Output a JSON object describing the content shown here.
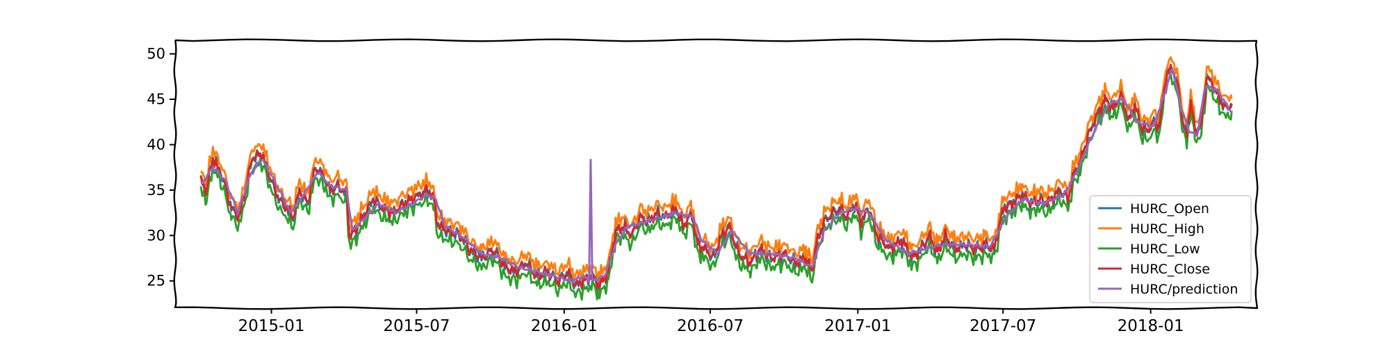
{
  "chart_data": {
    "type": "line",
    "title": "",
    "xlabel": "",
    "ylabel": "",
    "x_ticks": [
      "2015-01",
      "2015-07",
      "2016-01",
      "2016-07",
      "2017-01",
      "2017-07",
      "2018-01"
    ],
    "y_ticks": [
      25,
      30,
      35,
      40,
      45,
      50
    ],
    "x_range": [
      "2014-09-03",
      "2018-05-13"
    ],
    "ylim": [
      22,
      51.5
    ],
    "grid": false,
    "legend_position": "lower-right",
    "style": "xkcd-sketch",
    "series": [
      {
        "name": "HURC_Open",
        "color": "#1f77b4"
      },
      {
        "name": "HURC_High",
        "color": "#ff7f0e"
      },
      {
        "name": "HURC_Low",
        "color": "#2ca02c"
      },
      {
        "name": "HURC_Close",
        "color": "#d62728"
      },
      {
        "name": "HURC/prediction",
        "color": "#9467bd"
      }
    ],
    "close_points": [
      [
        "2014-10-05",
        36.0
      ],
      [
        "2014-10-12",
        35.0
      ],
      [
        "2014-10-20",
        38.5
      ],
      [
        "2014-11-01",
        36.5
      ],
      [
        "2014-11-12",
        33.0
      ],
      [
        "2014-11-22",
        32.0
      ],
      [
        "2014-12-02",
        36.0
      ],
      [
        "2014-12-08",
        38.5
      ],
      [
        "2014-12-20",
        39.0
      ],
      [
        "2015-01-01",
        36.0
      ],
      [
        "2015-01-10",
        34.0
      ],
      [
        "2015-01-20",
        33.0
      ],
      [
        "2015-01-28",
        32.0
      ],
      [
        "2015-02-05",
        35.0
      ],
      [
        "2015-02-15",
        33.5
      ],
      [
        "2015-02-25",
        37.5
      ],
      [
        "2015-03-08",
        36.5
      ],
      [
        "2015-03-15",
        35.0
      ],
      [
        "2015-03-25",
        35.5
      ],
      [
        "2015-04-05",
        34.5
      ],
      [
        "2015-04-08",
        30.0
      ],
      [
        "2015-04-15",
        30.5
      ],
      [
        "2015-04-25",
        32.0
      ],
      [
        "2015-05-08",
        34.0
      ],
      [
        "2015-05-20",
        33.0
      ],
      [
        "2015-06-01",
        32.5
      ],
      [
        "2015-06-15",
        33.5
      ],
      [
        "2015-06-25",
        34.0
      ],
      [
        "2015-07-05",
        34.5
      ],
      [
        "2015-07-15",
        35.0
      ],
      [
        "2015-07-22",
        34.0
      ],
      [
        "2015-07-28",
        31.0
      ],
      [
        "2015-08-10",
        30.5
      ],
      [
        "2015-08-25",
        30.0
      ],
      [
        "2015-09-05",
        28.5
      ],
      [
        "2015-09-20",
        27.5
      ],
      [
        "2015-10-05",
        28.5
      ],
      [
        "2015-10-20",
        26.5
      ],
      [
        "2015-11-01",
        26.0
      ],
      [
        "2015-11-15",
        27.0
      ],
      [
        "2015-11-28",
        25.5
      ],
      [
        "2015-12-10",
        26.0
      ],
      [
        "2015-12-25",
        25.0
      ],
      [
        "2016-01-05",
        26.0
      ],
      [
        "2016-01-15",
        24.5
      ],
      [
        "2016-01-25",
        25.0
      ],
      [
        "2016-02-05",
        25.5
      ],
      [
        "2016-02-14",
        24.5
      ],
      [
        "2016-02-25",
        26.0
      ],
      [
        "2016-03-05",
        30.5
      ],
      [
        "2016-03-15",
        31.0
      ],
      [
        "2016-03-25",
        30.0
      ],
      [
        "2016-04-05",
        32.0
      ],
      [
        "2016-04-15",
        31.5
      ],
      [
        "2016-04-25",
        32.5
      ],
      [
        "2016-05-05",
        32.0
      ],
      [
        "2016-05-20",
        33.0
      ],
      [
        "2016-05-28",
        31.0
      ],
      [
        "2016-06-08",
        32.5
      ],
      [
        "2016-06-15",
        29.0
      ],
      [
        "2016-06-25",
        28.5
      ],
      [
        "2016-07-05",
        27.5
      ],
      [
        "2016-07-15",
        30.0
      ],
      [
        "2016-07-25",
        31.0
      ],
      [
        "2016-08-05",
        28.0
      ],
      [
        "2016-08-20",
        27.0
      ],
      [
        "2016-09-01",
        28.5
      ],
      [
        "2016-09-15",
        27.5
      ],
      [
        "2016-10-01",
        28.0
      ],
      [
        "2016-10-15",
        27.0
      ],
      [
        "2016-10-28",
        27.5
      ],
      [
        "2016-11-05",
        26.0
      ],
      [
        "2016-11-10",
        29.0
      ],
      [
        "2016-11-20",
        31.5
      ],
      [
        "2016-12-01",
        32.5
      ],
      [
        "2016-12-10",
        33.0
      ],
      [
        "2016-12-18",
        32.0
      ],
      [
        "2016-12-28",
        33.5
      ],
      [
        "2017-01-05",
        31.5
      ],
      [
        "2017-01-15",
        33.0
      ],
      [
        "2017-01-25",
        30.0
      ],
      [
        "2017-02-10",
        28.5
      ],
      [
        "2017-02-25",
        29.5
      ],
      [
        "2017-03-10",
        27.5
      ],
      [
        "2017-03-20",
        28.5
      ],
      [
        "2017-04-01",
        30.0
      ],
      [
        "2017-04-10",
        28.0
      ],
      [
        "2017-04-20",
        30.0
      ],
      [
        "2017-05-01",
        28.5
      ],
      [
        "2017-05-15",
        29.0
      ],
      [
        "2017-05-28",
        28.5
      ],
      [
        "2017-06-10",
        29.0
      ],
      [
        "2017-06-20",
        28.5
      ],
      [
        "2017-07-01",
        33.0
      ],
      [
        "2017-07-12",
        33.5
      ],
      [
        "2017-07-25",
        34.5
      ],
      [
        "2017-08-05",
        33.5
      ],
      [
        "2017-08-15",
        34.0
      ],
      [
        "2017-08-25",
        33.5
      ],
      [
        "2017-09-10",
        35.0
      ],
      [
        "2017-09-20",
        34.0
      ],
      [
        "2017-09-28",
        37.0
      ],
      [
        "2017-10-05",
        38.0
      ],
      [
        "2017-10-15",
        41.0
      ],
      [
        "2017-10-25",
        43.0
      ],
      [
        "2017-11-05",
        45.0
      ],
      [
        "2017-11-15",
        44.0
      ],
      [
        "2017-11-25",
        45.5
      ],
      [
        "2017-12-05",
        42.5
      ],
      [
        "2017-12-12",
        44.5
      ],
      [
        "2017-12-20",
        42.0
      ],
      [
        "2017-12-28",
        41.5
      ],
      [
        "2018-01-05",
        42.5
      ],
      [
        "2018-01-12",
        42.0
      ],
      [
        "2018-01-20",
        47.5
      ],
      [
        "2018-01-28",
        48.5
      ],
      [
        "2018-02-05",
        46.0
      ],
      [
        "2018-02-10",
        42.5
      ],
      [
        "2018-02-15",
        41.0
      ],
      [
        "2018-02-20",
        45.0
      ],
      [
        "2018-02-25",
        41.5
      ],
      [
        "2018-03-05",
        42.0
      ],
      [
        "2018-03-12",
        47.5
      ],
      [
        "2018-03-20",
        46.5
      ],
      [
        "2018-03-28",
        45.0
      ],
      [
        "2018-04-05",
        44.0
      ],
      [
        "2018-04-12",
        44.5
      ]
    ],
    "prediction_points": [
      [
        "2014-10-05",
        35.5
      ],
      [
        "2014-10-20",
        37.5
      ],
      [
        "2014-11-05",
        36.0
      ],
      [
        "2014-11-20",
        32.5
      ],
      [
        "2014-12-05",
        36.5
      ],
      [
        "2014-12-20",
        38.5
      ],
      [
        "2015-01-05",
        36.0
      ],
      [
        "2015-01-25",
        32.5
      ],
      [
        "2015-02-10",
        34.5
      ],
      [
        "2015-02-28",
        37.0
      ],
      [
        "2015-03-15",
        35.5
      ],
      [
        "2015-04-05",
        35.0
      ],
      [
        "2015-04-12",
        30.5
      ],
      [
        "2015-04-28",
        32.0
      ],
      [
        "2015-05-15",
        33.5
      ],
      [
        "2015-06-05",
        32.5
      ],
      [
        "2015-06-25",
        33.5
      ],
      [
        "2015-07-15",
        34.5
      ],
      [
        "2015-07-25",
        34.0
      ],
      [
        "2015-08-05",
        31.0
      ],
      [
        "2015-08-25",
        30.0
      ],
      [
        "2015-09-20",
        28.0
      ],
      [
        "2015-10-15",
        27.5
      ],
      [
        "2015-11-05",
        26.5
      ],
      [
        "2015-11-28",
        26.0
      ],
      [
        "2015-12-20",
        25.5
      ],
      [
        "2016-01-10",
        25.0
      ],
      [
        "2016-01-25",
        25.5
      ],
      [
        "2016-02-01",
        25.0
      ],
      [
        "2016-02-03",
        38.5
      ],
      [
        "2016-02-05",
        25.0
      ],
      [
        "2016-02-20",
        25.5
      ],
      [
        "2016-03-05",
        29.0
      ],
      [
        "2016-03-20",
        31.0
      ],
      [
        "2016-04-10",
        31.5
      ],
      [
        "2016-05-01",
        32.0
      ],
      [
        "2016-05-20",
        32.5
      ],
      [
        "2016-06-10",
        32.0
      ],
      [
        "2016-06-20",
        29.5
      ],
      [
        "2016-07-10",
        28.0
      ],
      [
        "2016-07-28",
        30.5
      ],
      [
        "2016-08-20",
        28.0
      ],
      [
        "2016-09-15",
        28.0
      ],
      [
        "2016-10-15",
        27.5
      ],
      [
        "2016-11-05",
        26.5
      ],
      [
        "2016-11-20",
        30.5
      ],
      [
        "2016-12-10",
        32.5
      ],
      [
        "2016-12-28",
        33.0
      ],
      [
        "2017-01-15",
        32.5
      ],
      [
        "2017-02-05",
        29.5
      ],
      [
        "2017-03-05",
        28.0
      ],
      [
        "2017-03-25",
        28.5
      ],
      [
        "2017-04-15",
        29.0
      ],
      [
        "2017-05-15",
        29.0
      ],
      [
        "2017-06-15",
        28.8
      ],
      [
        "2017-07-05",
        32.0
      ],
      [
        "2017-07-25",
        34.0
      ],
      [
        "2017-08-20",
        33.5
      ],
      [
        "2017-09-15",
        34.5
      ],
      [
        "2017-10-01",
        37.0
      ],
      [
        "2017-10-20",
        41.0
      ],
      [
        "2017-11-10",
        44.5
      ],
      [
        "2017-11-28",
        45.0
      ],
      [
        "2017-12-15",
        42.5
      ],
      [
        "2018-01-05",
        42.0
      ],
      [
        "2018-01-18",
        45.5
      ],
      [
        "2018-01-28",
        48.5
      ],
      [
        "2018-02-08",
        44.0
      ],
      [
        "2018-02-18",
        41.5
      ],
      [
        "2018-02-28",
        41.0
      ],
      [
        "2018-03-10",
        46.5
      ],
      [
        "2018-03-25",
        46.0
      ],
      [
        "2018-04-12",
        43.5
      ]
    ]
  }
}
